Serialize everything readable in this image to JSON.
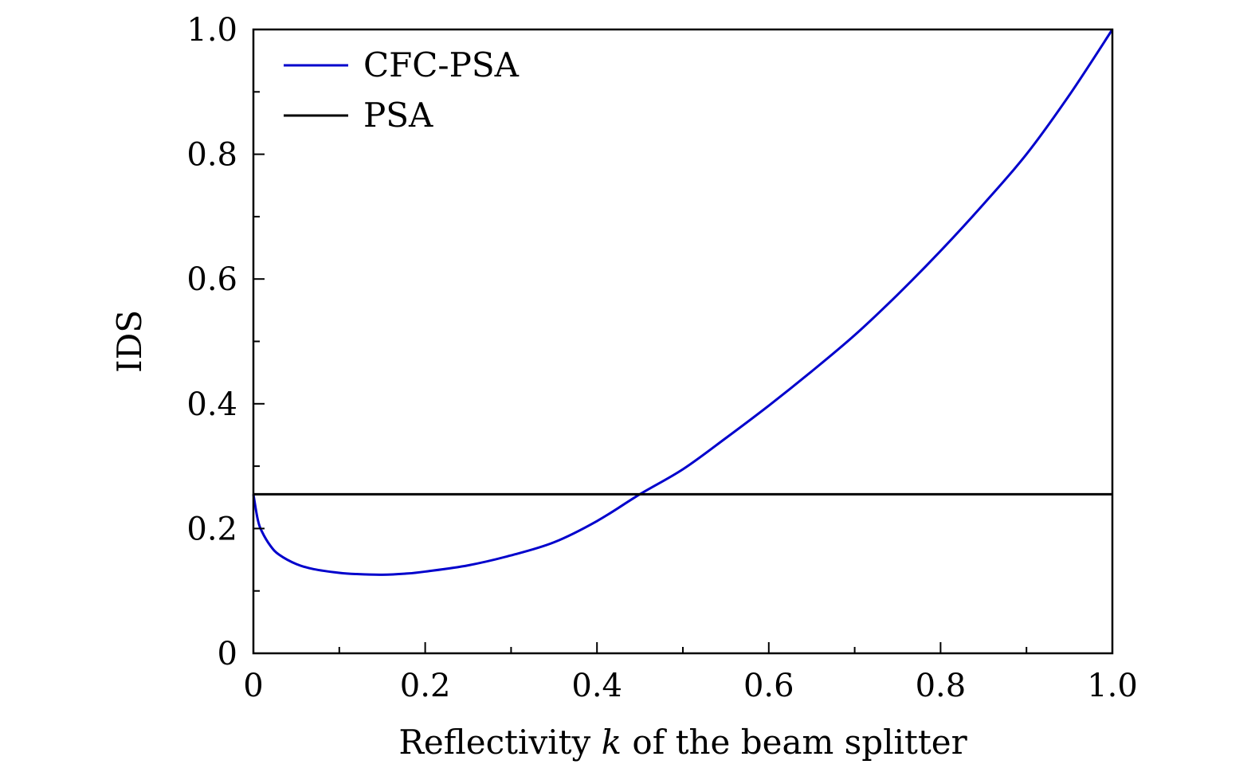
{
  "chart_data": {
    "type": "line",
    "title": "",
    "xlabel": "Reflectivity k of the beam splitter",
    "xlabel_parts": [
      "Reflectivity ",
      "k",
      " of the beam splitter"
    ],
    "ylabel": "IDS",
    "xlim": [
      0,
      1.0
    ],
    "ylim": [
      0,
      1.0
    ],
    "x_ticks": [
      0,
      0.2,
      0.4,
      0.6,
      0.8,
      1.0
    ],
    "x_tick_labels": [
      "0",
      "0.2",
      "0.4",
      "0.6",
      "0.8",
      "1.0"
    ],
    "x_minor_ticks": [
      0.1,
      0.3,
      0.5,
      0.7,
      0.9
    ],
    "y_ticks": [
      0,
      0.2,
      0.4,
      0.6,
      0.8,
      1.0
    ],
    "y_tick_labels": [
      "0",
      "0.2",
      "0.4",
      "0.6",
      "0.8",
      "1.0"
    ],
    "y_minor_ticks": [
      0.1,
      0.3,
      0.5,
      0.7,
      0.9
    ],
    "grid": false,
    "legend_position": "top-left",
    "series": [
      {
        "name": "CFC-PSA",
        "color": "#0000cc",
        "x": [
          0,
          0.005,
          0.01,
          0.02,
          0.03,
          0.05,
          0.07,
          0.1,
          0.12,
          0.15,
          0.18,
          0.2,
          0.25,
          0.3,
          0.35,
          0.4,
          0.45,
          0.5,
          0.55,
          0.6,
          0.65,
          0.7,
          0.75,
          0.8,
          0.85,
          0.9,
          0.95,
          1.0
        ],
        "y": [
          0.255,
          0.215,
          0.195,
          0.172,
          0.158,
          0.143,
          0.135,
          0.129,
          0.127,
          0.126,
          0.128,
          0.131,
          0.141,
          0.157,
          0.178,
          0.212,
          0.255,
          0.295,
          0.345,
          0.397,
          0.452,
          0.51,
          0.575,
          0.645,
          0.72,
          0.8,
          0.895,
          1.0
        ]
      },
      {
        "name": "PSA",
        "color": "#000000",
        "x": [
          0,
          1.0
        ],
        "y": [
          0.255,
          0.255
        ]
      }
    ]
  }
}
